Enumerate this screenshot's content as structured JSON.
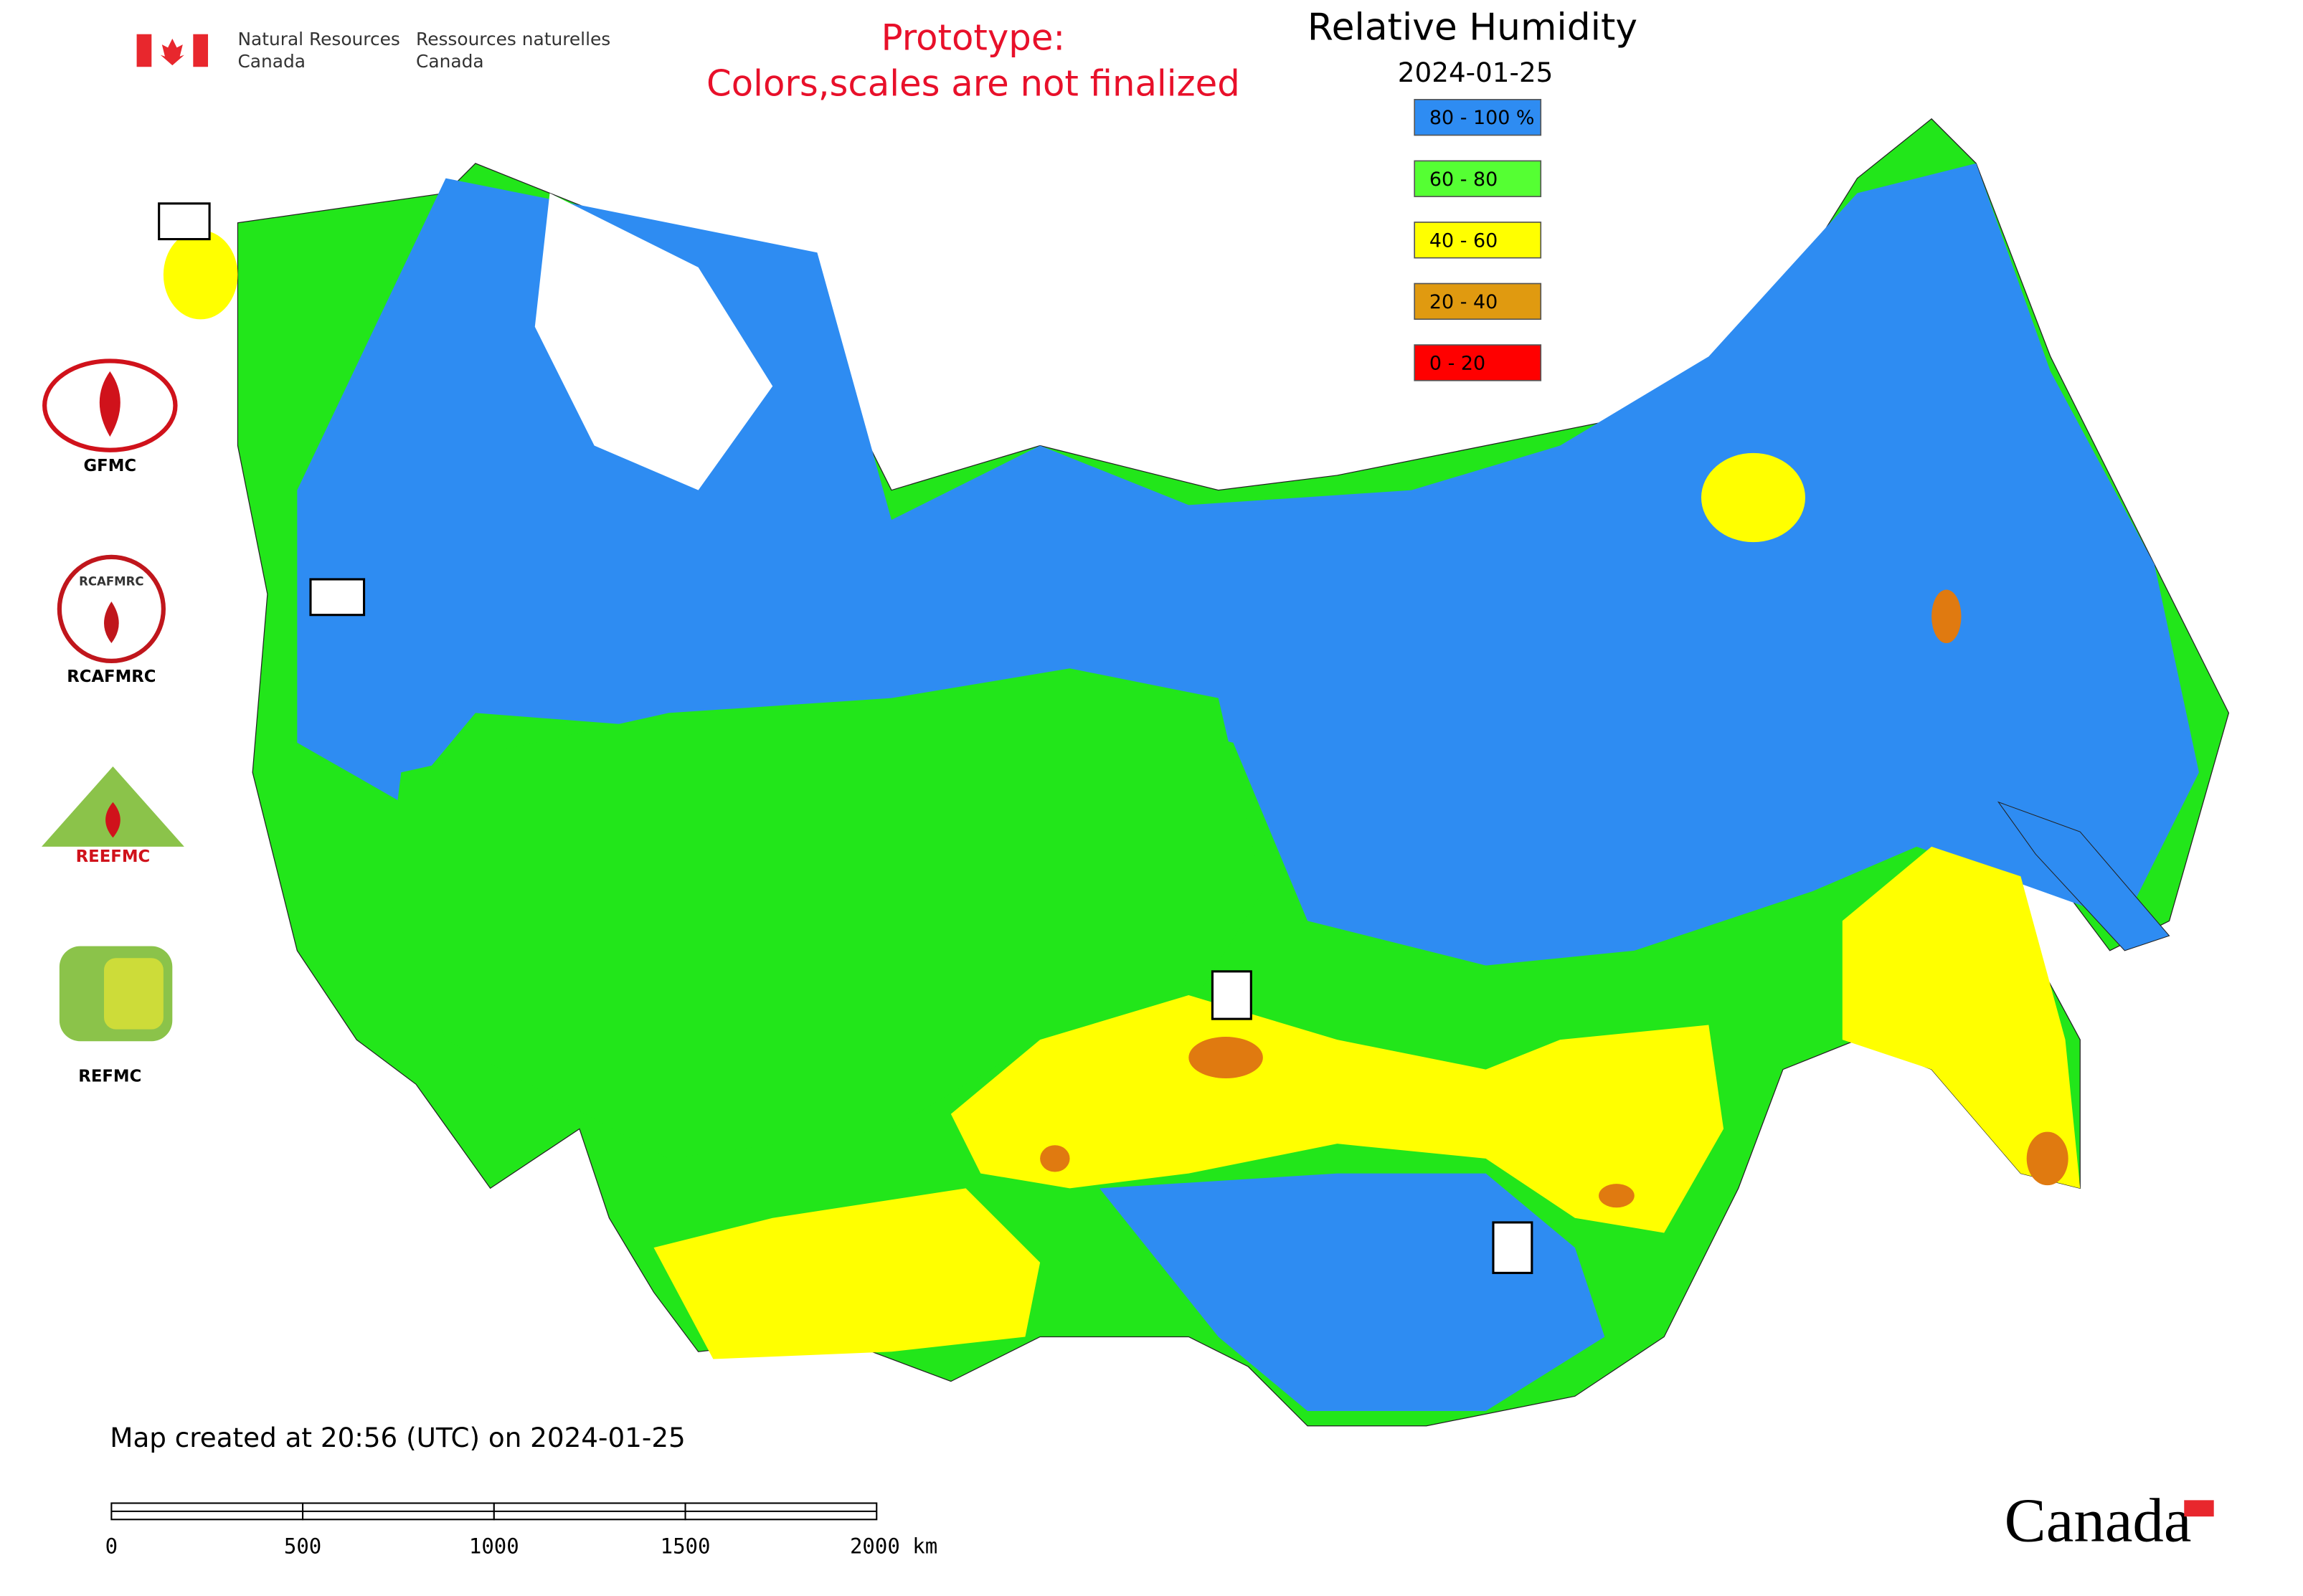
{
  "header": {
    "agency_en": [
      "Natural Resources",
      "Canada"
    ],
    "agency_fr": [
      "Ressources naturelles",
      "Canada"
    ]
  },
  "notice": [
    "Prototype:",
    "Colors,scales are not finalized"
  ],
  "legend": {
    "title": "Relative Humidity",
    "date": "2024-01-25",
    "items": [
      {
        "label": "80 - 100 %",
        "color": "#2e8cf2"
      },
      {
        "label": "60 - 80",
        "color": "#55ff33"
      },
      {
        "label": "40 - 60",
        "color": "#ffff00"
      },
      {
        "label": "20 - 40",
        "color": "#e09a10"
      },
      {
        "label": "0 - 20",
        "color": "#ff0000"
      }
    ]
  },
  "logos": [
    "GFMC",
    "RCAFMRC",
    "REEFMC",
    "REFMC"
  ],
  "footer": "Map created at 20:56 (UTC) on 2024-01-25",
  "scale_bar": [
    "0",
    "500",
    "1000",
    "1500",
    "2000 km"
  ],
  "wordmark": "Canada"
}
